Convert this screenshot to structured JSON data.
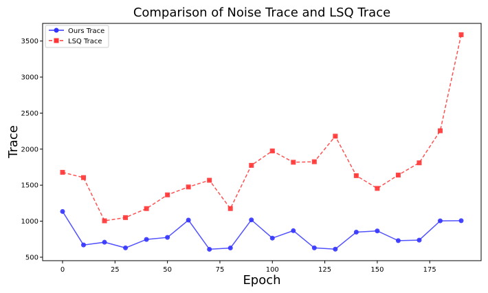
{
  "chart_data": {
    "type": "line",
    "title": "Comparison of Noise Trace and LSQ Trace",
    "xlabel": "Epoch",
    "ylabel": "Trace",
    "x": [
      0,
      10,
      20,
      30,
      40,
      50,
      60,
      70,
      80,
      90,
      100,
      110,
      120,
      130,
      140,
      150,
      160,
      170,
      180,
      190
    ],
    "series": [
      {
        "name": "Ours Trace",
        "color": "#3333ff",
        "style": "solid",
        "marker": "circle",
        "values": [
          1135,
          670,
          708,
          630,
          747,
          775,
          1015,
          610,
          628,
          1018,
          765,
          868,
          630,
          612,
          848,
          865,
          730,
          737,
          1005,
          1007
        ]
      },
      {
        "name": "LSQ Trace",
        "color": "#ff3333",
        "style": "dashed",
        "marker": "square",
        "values": [
          1678,
          1605,
          1005,
          1050,
          1175,
          1365,
          1475,
          1568,
          1175,
          1775,
          1975,
          1818,
          1825,
          2180,
          1632,
          1455,
          1640,
          1810,
          2255,
          3588
        ]
      }
    ],
    "xlim": [
      -9.5,
      199.5
    ],
    "ylim": [
      452,
      3745
    ],
    "xticks": [
      0,
      25,
      50,
      75,
      100,
      125,
      150,
      175
    ],
    "yticks": [
      500,
      1000,
      1500,
      2000,
      2500,
      3000,
      3500
    ],
    "grid": false,
    "legend_position": "top-left"
  }
}
